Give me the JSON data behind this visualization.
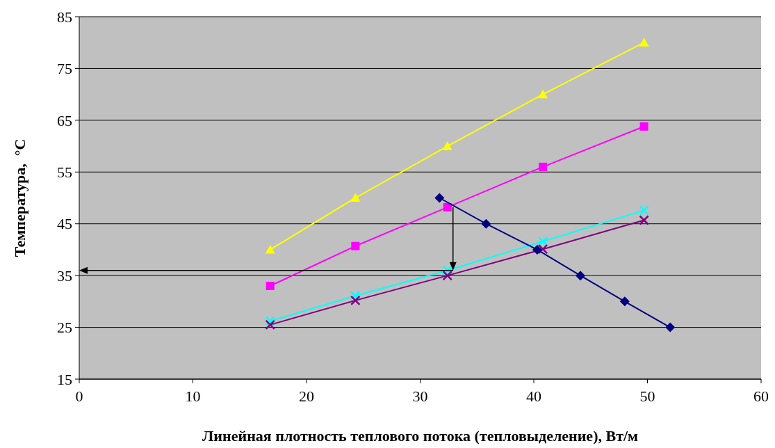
{
  "chart_data": {
    "type": "line",
    "xlabel": "Линейная плотность теплового потока (тепловыделение), Вт/м",
    "ylabel": "Температура,  °С",
    "xlim": [
      0,
      60
    ],
    "xticks": [
      0,
      10,
      20,
      30,
      40,
      50,
      60
    ],
    "ylim": [
      15,
      85
    ],
    "yticks": [
      15,
      25,
      35,
      45,
      55,
      65,
      75,
      85
    ],
    "grid": "y",
    "series": [
      {
        "color": "#ffff00",
        "marker": "triangle",
        "x": [
          16.8,
          24.3,
          32.4,
          40.8,
          49.7
        ],
        "values": [
          40,
          50,
          60,
          70,
          80
        ]
      },
      {
        "color": "#ff00ff",
        "marker": "square",
        "x": [
          16.8,
          24.3,
          32.4,
          40.8,
          49.7
        ],
        "values": [
          33,
          40.7,
          48.2,
          56,
          63.8
        ]
      },
      {
        "color": "#00ffff",
        "marker": "cross",
        "x": [
          16.8,
          24.3,
          32.4,
          40.8,
          49.7
        ],
        "values": [
          26.2,
          31.1,
          36,
          41.6,
          47.6
        ]
      },
      {
        "color": "#800080",
        "marker": "cross",
        "x": [
          16.8,
          24.3,
          32.4,
          40.8,
          49.7
        ],
        "values": [
          25.5,
          30.2,
          35,
          40.1,
          45.7
        ]
      },
      {
        "color": "#000080",
        "marker": "diamond",
        "x": [
          31.7,
          35.8,
          40.3,
          44.1,
          48,
          52
        ],
        "values": [
          50,
          45,
          40,
          35,
          30,
          25
        ]
      }
    ]
  }
}
